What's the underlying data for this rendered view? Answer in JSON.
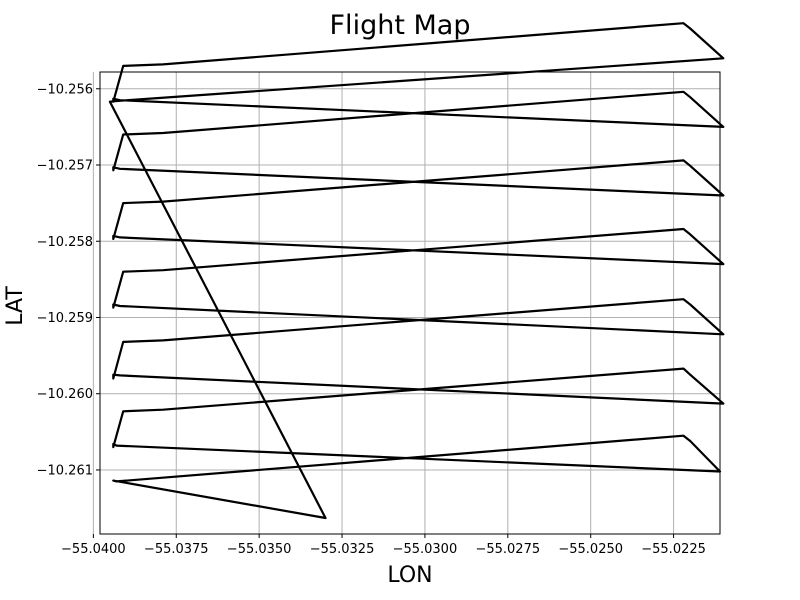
{
  "chart_data": {
    "type": "line",
    "title": "Flight Map",
    "xlabel": "LON",
    "ylabel": "LAT",
    "xlim": [
      -55.0398,
      -55.0211
    ],
    "ylim": [
      -10.26184,
      -10.25578
    ],
    "grid": true,
    "x_ticks": [
      -55.04,
      -55.0375,
      -55.035,
      -55.0325,
      -55.03,
      -55.0275,
      -55.025,
      -55.0225
    ],
    "x_tick_labels": [
      "−55.0400",
      "−55.0375",
      "−55.0350",
      "−55.0325",
      "−55.0300",
      "−55.0275",
      "−55.0250",
      "−55.0225"
    ],
    "y_ticks": [
      -10.256,
      -10.257,
      -10.258,
      -10.259,
      -10.26,
      -10.261
    ],
    "y_tick_labels": [
      "−10.256",
      "−10.257",
      "−10.258",
      "−10.259",
      "−10.260",
      "−10.261"
    ],
    "color": "#000000",
    "series": [
      {
        "x": [
          -55.033,
          -55.0394,
          -55.0393,
          -55.0222,
          -55.022,
          -55.0211,
          -55.0393,
          -55.0394,
          -55.0394,
          -55.0391,
          -55.0379,
          -55.0222,
          -55.022,
          -55.021,
          -55.0392,
          -55.0394,
          -55.0394,
          -55.0391,
          -55.0379,
          -55.0222,
          -55.022,
          -55.021,
          -55.0392,
          -55.0394,
          -55.0394,
          -55.0391,
          -55.0379,
          -55.0222,
          -55.022,
          -55.021,
          -55.0392,
          -55.0394,
          -55.0394,
          -55.0391,
          -55.0379,
          -55.0222,
          -55.022,
          -55.021,
          -55.0392,
          -55.0394,
          -55.0394,
          -55.0391,
          -55.0379,
          -55.0222,
          -55.022,
          -55.021,
          -55.0392,
          -55.0394,
          -55.0394,
          -55.0391,
          -55.0379,
          -55.0222,
          -55.022,
          -55.021,
          -55.0393,
          -55.0395,
          -55.033
        ],
        "y": [
          -10.26163,
          -10.26114,
          -10.26115,
          -10.26055,
          -10.26062,
          -10.26102,
          -10.26068,
          -10.26066,
          -10.2607,
          -10.26023,
          -10.26021,
          -10.25967,
          -10.25975,
          -10.26013,
          -10.25976,
          -10.25975,
          -10.2598,
          -10.25932,
          -10.2593,
          -10.25876,
          -10.25883,
          -10.25922,
          -10.25885,
          -10.25883,
          -10.25887,
          -10.2584,
          -10.25838,
          -10.25784,
          -10.25791,
          -10.2583,
          -10.25795,
          -10.25793,
          -10.25797,
          -10.2575,
          -10.25748,
          -10.25694,
          -10.25701,
          -10.2574,
          -10.25705,
          -10.25703,
          -10.25707,
          -10.2566,
          -10.25658,
          -10.25604,
          -10.25611,
          -10.2565,
          -10.25615,
          -10.25613,
          -10.25617,
          -10.2557,
          -10.25568,
          -10.25514,
          -10.25521,
          -10.2556,
          -10.25616,
          -10.25617,
          -10.26163
        ]
      }
    ]
  }
}
